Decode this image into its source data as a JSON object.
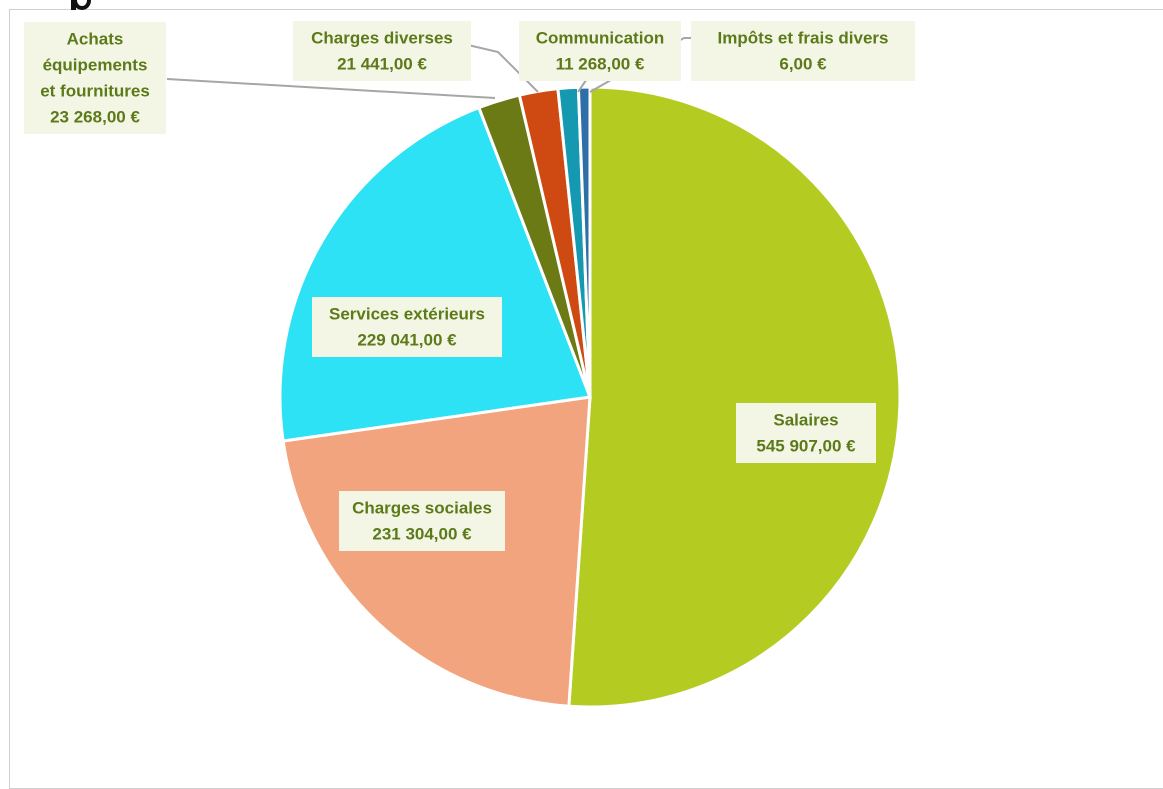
{
  "chart_data": {
    "type": "pie",
    "title": "",
    "currency": "€",
    "slices": [
      {
        "label": "Salaires",
        "value": 545907.0,
        "value_text": "545 907,00 €",
        "color": "#b4cc22"
      },
      {
        "label": "Charges sociales",
        "value": 231304.0,
        "value_text": "231 304,00 €",
        "color": "#f2a47e"
      },
      {
        "label": "Services extérieurs",
        "value": 229041.0,
        "value_text": "229 041,00 €",
        "color": "#2ee2f5"
      },
      {
        "label": "Achats équipements et fournitures",
        "label_lines": [
          "Achats",
          "équipements",
          "et fournitures"
        ],
        "value": 23268.0,
        "value_text": "23 268,00 €",
        "color": "#6b7a15"
      },
      {
        "label": "Charges diverses",
        "value": 21441.0,
        "value_text": "21 441,00 €",
        "color": "#cf4a12"
      },
      {
        "label": "Communication",
        "value": 11268.0,
        "value_text": "11 268,00 €",
        "color": "#1599b0"
      },
      {
        "label": "Impôts et frais  divers",
        "value": 6.0,
        "value_text": "6,00 €",
        "color": "#2e6fa8"
      }
    ],
    "legend": "none",
    "data_labels": "category and value"
  },
  "colors": {
    "label_text": "#5c7a1a",
    "label_background": "#f3f6e4",
    "leader_line": "#a6a6a6",
    "slice_border": "#ffffff"
  }
}
